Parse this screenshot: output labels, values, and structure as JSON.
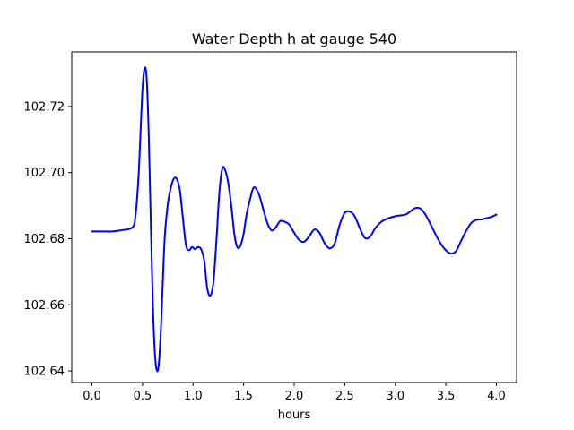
{
  "chart_data": {
    "type": "line",
    "title": "Water Depth h at gauge 540",
    "xlabel": "hours",
    "ylabel": "",
    "xlim": [
      -0.2,
      4.2
    ],
    "ylim": [
      102.6365,
      102.7365
    ],
    "grid": false,
    "legend": "none",
    "xticks": [
      0.0,
      0.5,
      1.0,
      1.5,
      2.0,
      2.5,
      3.0,
      3.5,
      4.0
    ],
    "xtick_labels": [
      "0.0",
      "0.5",
      "1.0",
      "1.5",
      "2.0",
      "2.5",
      "3.0",
      "3.5",
      "4.0"
    ],
    "yticks": [
      102.64,
      102.66,
      102.68,
      102.7,
      102.72
    ],
    "ytick_labels": [
      "102.64",
      "102.66",
      "102.68",
      "102.70",
      "102.72"
    ],
    "series": [
      {
        "name": "h",
        "color": "#0000ff",
        "x": [
          0.0,
          0.1,
          0.2,
          0.3,
          0.4,
          0.43,
          0.46,
          0.48,
          0.5,
          0.52,
          0.54,
          0.56,
          0.58,
          0.6,
          0.62,
          0.64,
          0.66,
          0.68,
          0.7,
          0.72,
          0.75,
          0.78,
          0.81,
          0.84,
          0.87,
          0.9,
          0.93,
          0.96,
          0.99,
          1.02,
          1.05,
          1.08,
          1.11,
          1.14,
          1.17,
          1.2,
          1.23,
          1.26,
          1.29,
          1.32,
          1.35,
          1.38,
          1.41,
          1.44,
          1.47,
          1.5,
          1.53,
          1.56,
          1.6,
          1.65,
          1.7,
          1.74,
          1.78,
          1.82,
          1.86,
          1.9,
          1.95,
          2.0,
          2.05,
          2.1,
          2.15,
          2.2,
          2.25,
          2.3,
          2.35,
          2.4,
          2.45,
          2.5,
          2.55,
          2.6,
          2.65,
          2.7,
          2.75,
          2.8,
          2.85,
          2.9,
          3.0,
          3.1,
          3.15,
          3.2,
          3.25,
          3.3,
          3.35,
          3.4,
          3.45,
          3.5,
          3.55,
          3.6,
          3.65,
          3.7,
          3.75,
          3.8,
          3.85,
          3.9,
          3.95,
          4.0
        ],
        "values": [
          102.6822,
          102.6822,
          102.6822,
          102.6826,
          102.6834,
          102.6868,
          102.6985,
          102.712,
          102.7255,
          102.7315,
          102.729,
          102.713,
          102.6875,
          102.6625,
          102.6465,
          102.6403,
          102.6418,
          102.6515,
          102.6665,
          102.6805,
          102.6905,
          102.6955,
          102.6982,
          102.698,
          102.6945,
          102.686,
          102.678,
          102.6765,
          102.6775,
          102.6768,
          102.6775,
          102.6768,
          102.6735,
          102.665,
          102.6628,
          102.6665,
          102.679,
          102.694,
          102.7013,
          102.7005,
          102.6965,
          102.6895,
          102.681,
          102.6773,
          102.678,
          102.6815,
          102.6875,
          102.6915,
          102.6955,
          102.6935,
          102.6883,
          102.6843,
          102.6825,
          102.6835,
          102.6853,
          102.6852,
          102.6843,
          102.6818,
          102.6796,
          102.6791,
          102.6808,
          102.6828,
          102.6818,
          102.6787,
          102.6771,
          102.6785,
          102.6842,
          102.6878,
          102.6882,
          102.6867,
          102.6831,
          102.6802,
          102.6806,
          102.6831,
          102.6848,
          102.6858,
          102.6868,
          102.6873,
          102.6883,
          102.6893,
          102.6891,
          102.6872,
          102.6843,
          102.6812,
          102.6785,
          102.6765,
          102.6755,
          102.6762,
          102.6793,
          102.6823,
          102.6847,
          102.6857,
          102.6858,
          102.6862,
          102.6866,
          102.6873
        ]
      }
    ]
  }
}
